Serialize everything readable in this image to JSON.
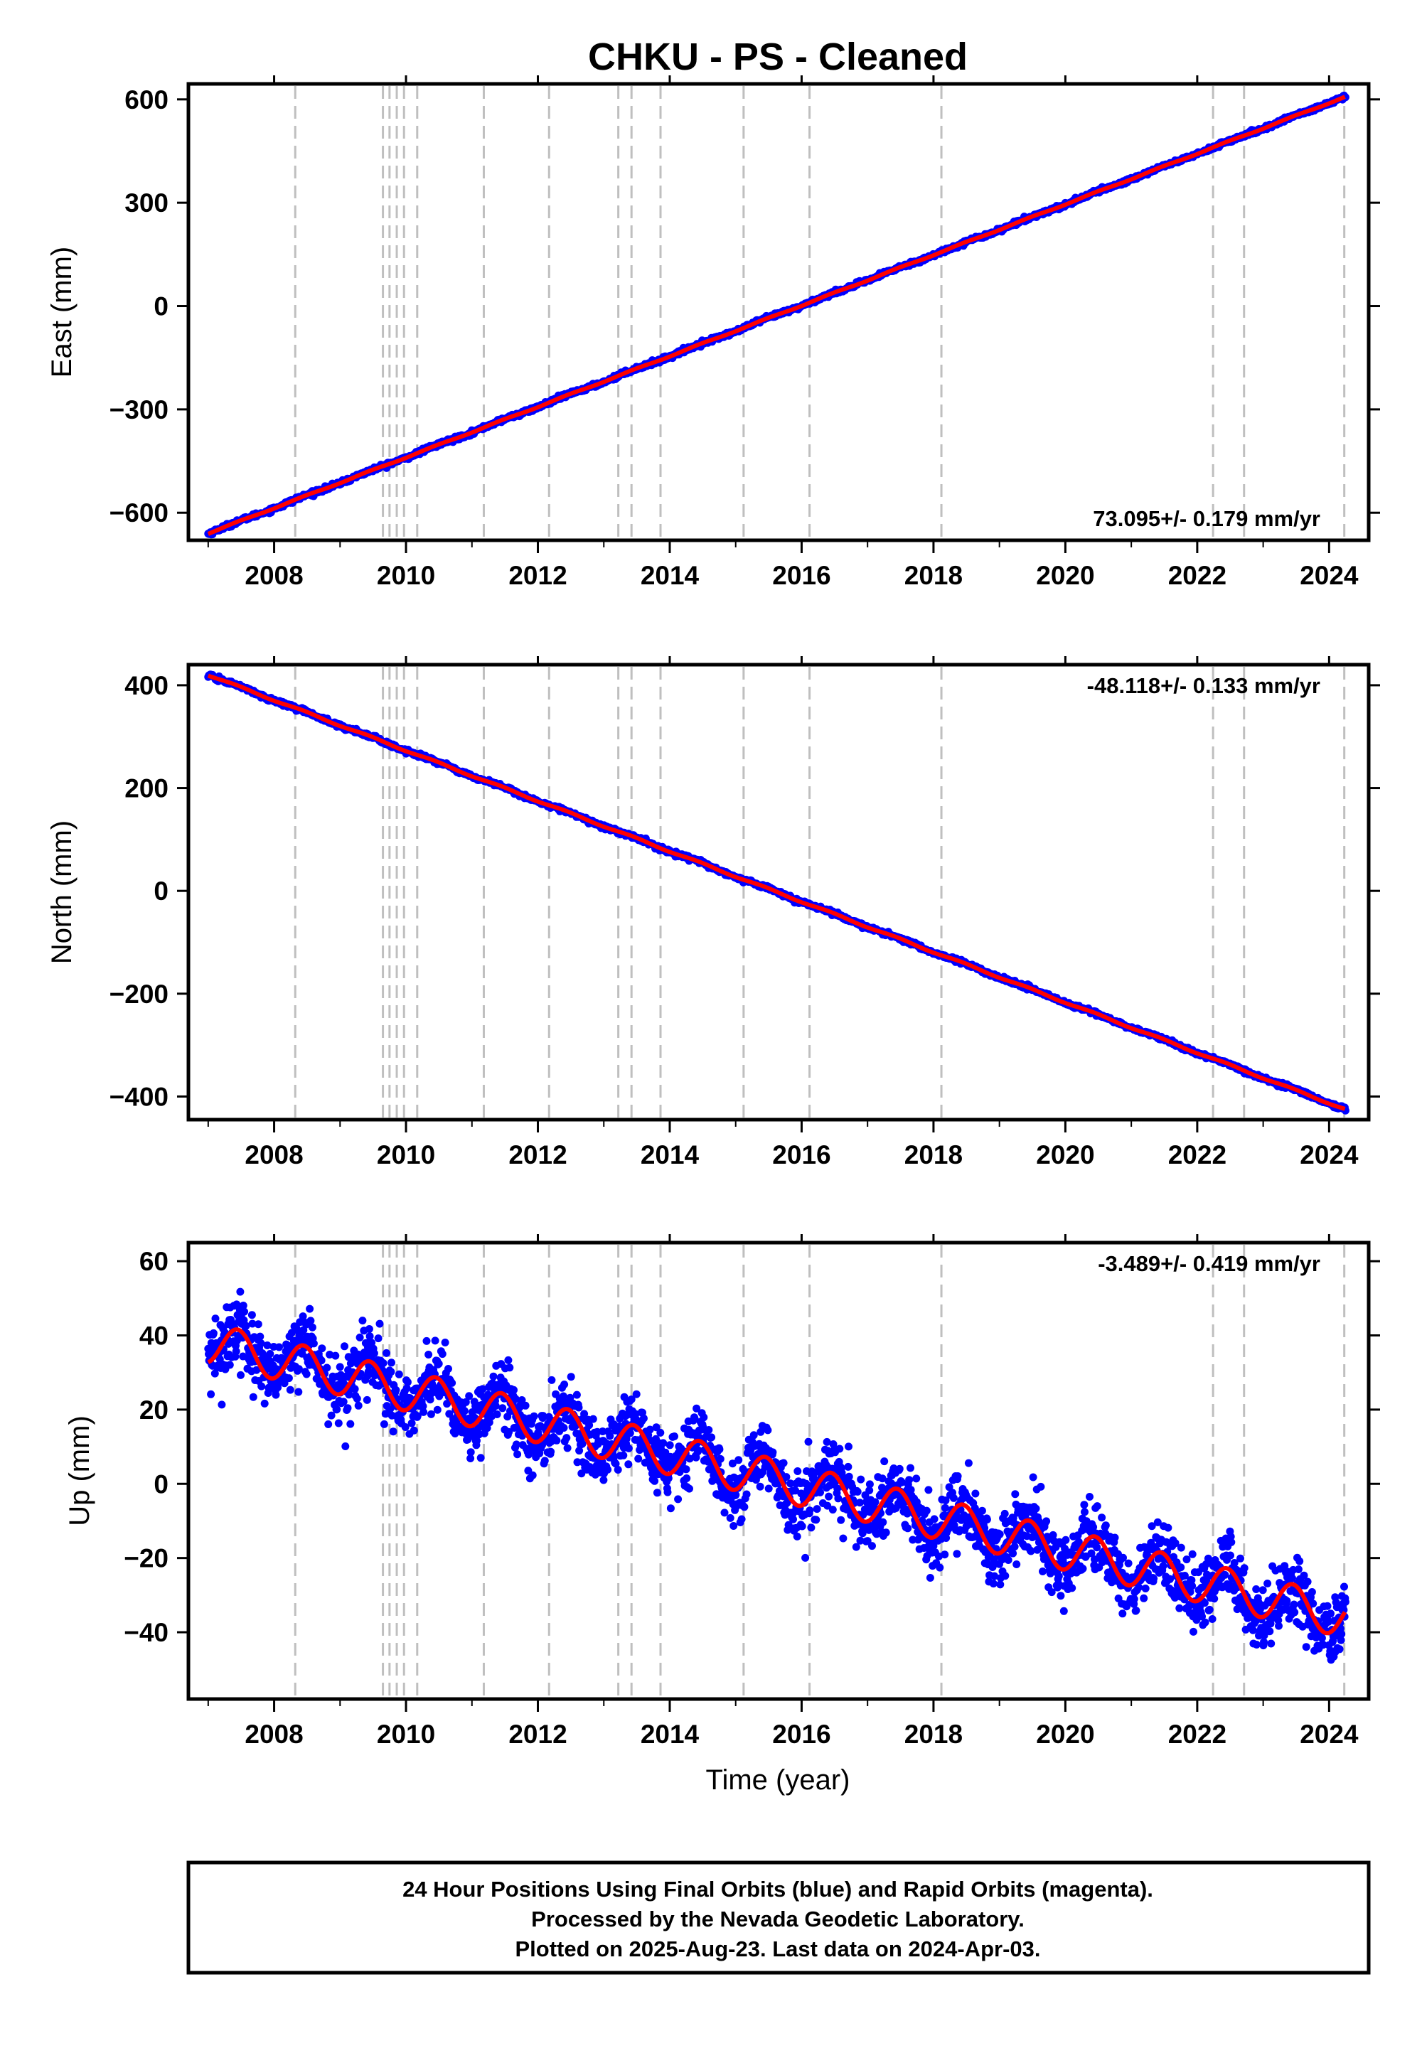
{
  "title": "CHKU  - PS - Cleaned",
  "xlabel": "Time (year)",
  "note": {
    "lines": [
      "24 Hour Positions Using Final Orbits (blue) and Rapid Orbits (magenta).",
      "Processed by the Nevada Geodetic Laboratory.",
      "Plotted on 2025-Aug-23. Last data on 2024-Apr-03."
    ]
  },
  "colors": {
    "data": "#0000ff",
    "model": "#ff0000",
    "event_lines": "#bfbfbf",
    "frame": "#000000"
  },
  "chart_data": [
    {
      "type": "scatter",
      "ylabel": "East (mm)",
      "rate_label": "73.095+/- 0.179 mm/yr",
      "rate_position": "bottom-right",
      "xlim": [
        2006.7,
        2024.6
      ],
      "ylim": [
        -680,
        645
      ],
      "xticks": [
        2008,
        2010,
        2012,
        2014,
        2016,
        2018,
        2020,
        2022,
        2024
      ],
      "yticks": [
        -600,
        -300,
        0,
        300,
        600
      ],
      "ytick_labels": [
        "−600",
        "−300",
        "0",
        "300",
        "600"
      ],
      "event_lines_years": [
        2008.32,
        2009.65,
        2009.75,
        2009.86,
        2009.97,
        2010.17,
        2011.18,
        2012.17,
        2013.22,
        2013.42,
        2013.86,
        2015.12,
        2016.12,
        2018.12,
        2022.24,
        2022.71,
        2024.23
      ],
      "model": {
        "start": [
          2007.0,
          -660
        ],
        "end": [
          2024.25,
          608
        ],
        "rate_mm_per_yr": 73.095,
        "annual_amp": 1.5,
        "noise": 3
      },
      "grid": false
    },
    {
      "type": "scatter",
      "ylabel": "North (mm)",
      "rate_label": "-48.118+/- 0.133 mm/yr",
      "rate_position": "top-right",
      "xlim": [
        2006.7,
        2024.6
      ],
      "ylim": [
        -445,
        440
      ],
      "xticks": [
        2008,
        2010,
        2012,
        2014,
        2016,
        2018,
        2020,
        2022,
        2024
      ],
      "yticks": [
        -400,
        -200,
        0,
        200,
        400
      ],
      "ytick_labels": [
        "−400",
        "−200",
        "0",
        "200",
        "400"
      ],
      "event_lines_years": [
        2008.32,
        2009.65,
        2009.75,
        2009.86,
        2009.97,
        2010.17,
        2011.18,
        2012.17,
        2013.22,
        2013.42,
        2013.86,
        2015.12,
        2016.12,
        2018.12,
        2022.24,
        2022.71,
        2024.23
      ],
      "model": {
        "start": [
          2007.0,
          420
        ],
        "end": [
          2024.25,
          -425
        ],
        "rate_mm_per_yr": -48.118,
        "annual_amp": 1.5,
        "noise": 2
      },
      "grid": false
    },
    {
      "type": "scatter",
      "ylabel": "Up (mm)",
      "rate_label": "-3.489+/- 0.419 mm/yr",
      "rate_position": "top-right",
      "xlim": [
        2006.7,
        2024.6
      ],
      "ylim": [
        -58,
        65
      ],
      "xticks": [
        2008,
        2010,
        2012,
        2014,
        2016,
        2018,
        2020,
        2022,
        2024
      ],
      "yticks": [
        -40,
        -20,
        0,
        20,
        40,
        60
      ],
      "ytick_labels": [
        "−40",
        "−20",
        "0",
        "20",
        "40",
        "60"
      ],
      "event_lines_years": [
        2008.32,
        2009.65,
        2009.75,
        2009.86,
        2009.97,
        2010.17,
        2011.18,
        2012.17,
        2013.22,
        2013.42,
        2013.86,
        2015.12,
        2016.12,
        2018.12,
        2022.24,
        2022.71,
        2024.23
      ],
      "model": {
        "start": [
          2007.0,
          38
        ],
        "end": [
          2024.25,
          -36
        ],
        "rate_mm_per_yr": -3.489,
        "annual_amp": 5.5,
        "noise": 4.5
      },
      "grid": false
    }
  ]
}
